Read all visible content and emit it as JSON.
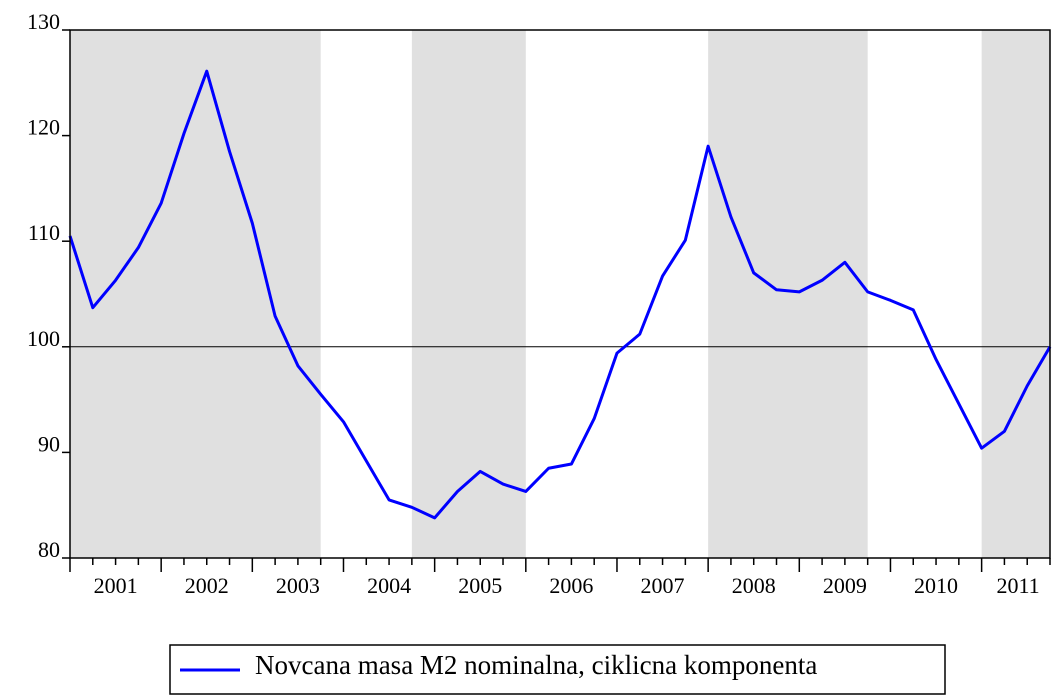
{
  "chart_data": {
    "type": "line",
    "x": [
      2001,
      2001.25,
      2001.5,
      2001.75,
      2002,
      2002.25,
      2002.5,
      2002.75,
      2003,
      2003.25,
      2003.5,
      2003.75,
      2004,
      2004.25,
      2004.5,
      2004.75,
      2005,
      2005.25,
      2005.5,
      2005.75,
      2006,
      2006.25,
      2006.5,
      2006.75,
      2007,
      2007.25,
      2007.5,
      2007.75,
      2008,
      2008.25,
      2008.5,
      2008.75,
      2009,
      2009.25,
      2009.5,
      2009.75,
      2010,
      2010.25,
      2010.5,
      2010.75,
      2011,
      2011.25,
      2011.5,
      2011.75
    ],
    "series": [
      {
        "name": "Novcana masa M2 nominalna, ciklicna komponenta",
        "color": "#0000ff",
        "values": [
          110.5,
          103.7,
          106.3,
          109.4,
          113.6,
          120.2,
          126.1,
          118.5,
          111.7,
          102.9,
          98.2,
          95.5,
          92.9,
          89.2,
          85.5,
          84.8,
          83.8,
          86.3,
          88.2,
          87.0,
          86.3,
          88.5,
          88.9,
          93.2,
          99.4,
          101.2,
          106.7,
          110.1,
          119.0,
          112.3,
          107.0,
          105.4,
          105.2,
          106.3,
          108.0,
          105.2,
          104.4,
          103.5,
          98.8,
          94.6,
          90.4,
          92.0,
          96.3,
          100.0
        ]
      }
    ],
    "xlim": [
      2001,
      2011.75
    ],
    "xticks": [
      {
        "value": 2001.5,
        "label": "2001"
      },
      {
        "value": 2002.5,
        "label": "2002"
      },
      {
        "value": 2003.5,
        "label": "2003"
      },
      {
        "value": 2004.5,
        "label": "2004"
      },
      {
        "value": 2005.5,
        "label": "2005"
      },
      {
        "value": 2006.5,
        "label": "2006"
      },
      {
        "value": 2007.5,
        "label": "2007"
      },
      {
        "value": 2008.5,
        "label": "2008"
      },
      {
        "value": 2009.5,
        "label": "2009"
      },
      {
        "value": 2010.5,
        "label": "2010"
      },
      {
        "value": 2011.4,
        "label": "2011"
      }
    ],
    "ylim": [
      80,
      130
    ],
    "yticks": [
      80,
      90,
      100,
      110,
      120,
      130
    ],
    "hline": 100,
    "shaded": [
      [
        2001,
        2003.75
      ],
      [
        2004.75,
        2006
      ],
      [
        2008,
        2009.75
      ],
      [
        2011,
        2011.75
      ]
    ],
    "shade_color": "#e0e0e0"
  }
}
